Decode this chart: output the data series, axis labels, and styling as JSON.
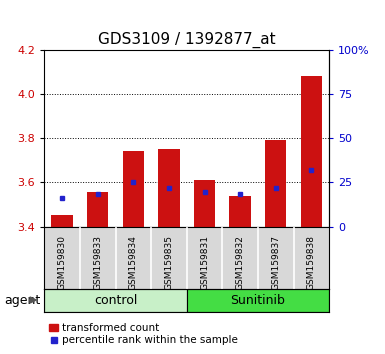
{
  "title": "GDS3109 / 1392877_at",
  "samples": [
    "GSM159830",
    "GSM159833",
    "GSM159834",
    "GSM159835",
    "GSM159831",
    "GSM159832",
    "GSM159837",
    "GSM159838"
  ],
  "red_values": [
    3.45,
    3.555,
    3.74,
    3.75,
    3.61,
    3.54,
    3.79,
    4.08
  ],
  "blue_values": [
    3.53,
    3.545,
    3.6,
    3.575,
    3.555,
    3.545,
    3.575,
    3.655
  ],
  "y_min": 3.4,
  "y_max": 4.2,
  "y_ticks": [
    3.4,
    3.6,
    3.8,
    4.0,
    4.2
  ],
  "y2_ticks": [
    0,
    25,
    50,
    75,
    100
  ],
  "y2_tick_labels": [
    "0",
    "25",
    "50",
    "75",
    "100%"
  ],
  "group_labels": [
    "control",
    "Sunitinib"
  ],
  "group_colors": [
    "#c8f0c8",
    "#44dd44"
  ],
  "agent_label": "agent",
  "legend_red": "transformed count",
  "legend_blue": "percentile rank within the sample",
  "bar_color": "#cc1111",
  "dot_color": "#2222cc",
  "bar_width": 0.6,
  "bg_color": "#d8d8d8",
  "plot_bg": "#ffffff",
  "title_fontsize": 11,
  "axis_label_color_red": "#cc0000",
  "axis_label_color_blue": "#0000cc"
}
